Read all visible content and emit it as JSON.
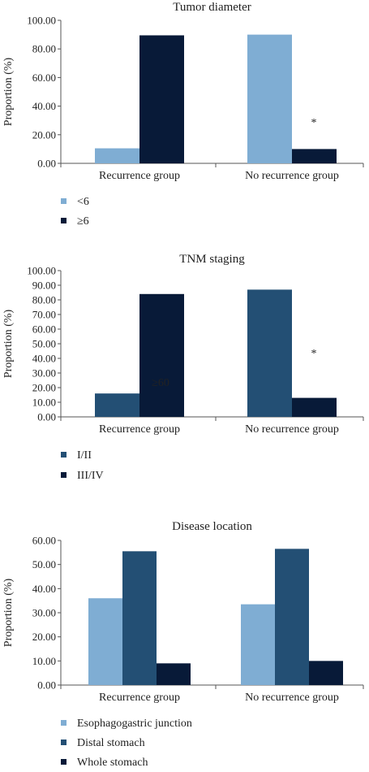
{
  "chart_data": [
    {
      "type": "bar",
      "title": "Tumor diameter",
      "ylabel": "Proportion (%)",
      "xlabel": "",
      "categories": [
        "Recurrence group",
        "No recurrence group"
      ],
      "ylim": [
        0,
        100
      ],
      "yticks": [
        "0.00",
        "20.00",
        "40.00",
        "60.00",
        "80.00",
        "100.00"
      ],
      "series": [
        {
          "name": "<6",
          "values": [
            10.5,
            90
          ],
          "color": "#7fadd3"
        },
        {
          "name": "≥6",
          "values": [
            89.5,
            10
          ],
          "color": "#081a38"
        }
      ],
      "annotations": [
        {
          "text": "*",
          "category": 1
        }
      ],
      "legend": "bottom-left",
      "grid": false
    },
    {
      "type": "bar",
      "title": "TNM staging",
      "ylabel": "Proportion (%)",
      "xlabel": "",
      "categories": [
        "Recurrence group",
        "No recurrence group"
      ],
      "ylim": [
        0,
        100
      ],
      "yticks": [
        "0.00",
        "10.00",
        "20.00",
        "30.00",
        "40.00",
        "50.00",
        "60.00",
        "70.00",
        "80.00",
        "90.00",
        "100.00"
      ],
      "series": [
        {
          "name": "I/II",
          "values": [
            16,
            87
          ],
          "color": "#234f74"
        },
        {
          "name": "III/IV",
          "values": [
            84,
            13
          ],
          "color": "#081a38"
        }
      ],
      "annotations": [
        {
          "text": "≥60",
          "category": 0
        },
        {
          "text": "*",
          "category": 1
        }
      ],
      "legend": "bottom-left",
      "grid": false
    },
    {
      "type": "bar",
      "title": "Disease location",
      "ylabel": "Proportion (%)",
      "xlabel": "",
      "categories": [
        "Recurrence group",
        "No recurrence group"
      ],
      "ylim": [
        0,
        60
      ],
      "yticks": [
        "0.00",
        "10.00",
        "20.00",
        "30.00",
        "40.00",
        "50.00",
        "60.00"
      ],
      "series": [
        {
          "name": "Esophagogastric junction",
          "values": [
            36,
            33.5
          ],
          "color": "#7fadd3"
        },
        {
          "name": "Distal stomach",
          "values": [
            55.5,
            56.5
          ],
          "color": "#234f74"
        },
        {
          "name": "Whole stomach",
          "values": [
            9,
            10
          ],
          "color": "#081a38"
        }
      ],
      "legend": "bottom-left",
      "grid": false
    }
  ]
}
